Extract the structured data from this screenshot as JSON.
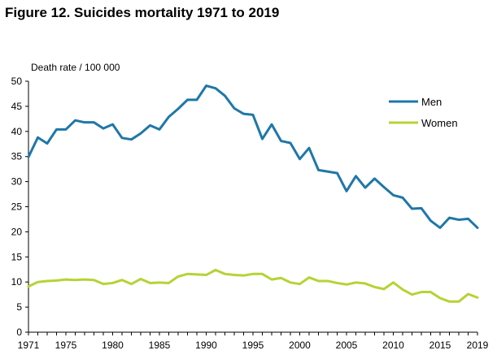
{
  "title": "Figure 12. Suicides mortality 1971 to 2019",
  "chart_data": {
    "type": "line",
    "title": "Figure 12. Suicides mortality 1971 to 2019",
    "ylabel": "Death rate / 100 000",
    "xlabel": "",
    "ylim": [
      0,
      50
    ],
    "xlim": [
      1971,
      2019
    ],
    "y_ticks": [
      0,
      5,
      10,
      15,
      20,
      25,
      30,
      35,
      40,
      45,
      50
    ],
    "x_tick_labels": [
      "1971",
      "1975",
      "1980",
      "1985",
      "1990",
      "1995",
      "2000",
      "2005",
      "2010",
      "2015",
      "2019"
    ],
    "grid": false,
    "legend_position": "top-right",
    "x": [
      1971,
      1972,
      1973,
      1974,
      1975,
      1976,
      1977,
      1978,
      1979,
      1980,
      1981,
      1982,
      1983,
      1984,
      1985,
      1986,
      1987,
      1988,
      1989,
      1990,
      1991,
      1992,
      1993,
      1994,
      1995,
      1996,
      1997,
      1998,
      1999,
      2000,
      2001,
      2002,
      2003,
      2004,
      2005,
      2006,
      2007,
      2008,
      2009,
      2010,
      2011,
      2012,
      2013,
      2014,
      2015,
      2016,
      2017,
      2018,
      2019
    ],
    "series": [
      {
        "name": "Men",
        "color": "#1f77a8",
        "values": [
          34.9,
          38.8,
          37.6,
          40.4,
          40.4,
          42.2,
          41.8,
          41.8,
          40.6,
          41.4,
          38.7,
          38.4,
          39.6,
          41.2,
          40.4,
          42.9,
          44.5,
          46.3,
          46.3,
          49.1,
          48.6,
          47.1,
          44.6,
          43.5,
          43.3,
          38.5,
          41.4,
          38.1,
          37.7,
          34.5,
          36.7,
          32.3,
          32.0,
          31.7,
          28.1,
          31.1,
          28.8,
          30.6,
          28.9,
          27.3,
          26.8,
          24.6,
          24.7,
          22.2,
          20.8,
          22.8,
          22.4,
          22.6,
          20.8
        ]
      },
      {
        "name": "Women",
        "color": "#b5d334",
        "values": [
          9.1,
          10.0,
          10.2,
          10.3,
          10.5,
          10.4,
          10.5,
          10.4,
          9.6,
          9.8,
          10.4,
          9.6,
          10.6,
          9.8,
          9.9,
          9.8,
          11.1,
          11.6,
          11.5,
          11.4,
          12.4,
          11.6,
          11.4,
          11.3,
          11.6,
          11.6,
          10.5,
          10.8,
          9.9,
          9.6,
          10.9,
          10.2,
          10.2,
          9.8,
          9.5,
          9.9,
          9.7,
          9.0,
          8.6,
          9.9,
          8.5,
          7.5,
          8.0,
          8.0,
          6.8,
          6.1,
          6.1,
          7.6,
          6.9
        ]
      }
    ]
  }
}
